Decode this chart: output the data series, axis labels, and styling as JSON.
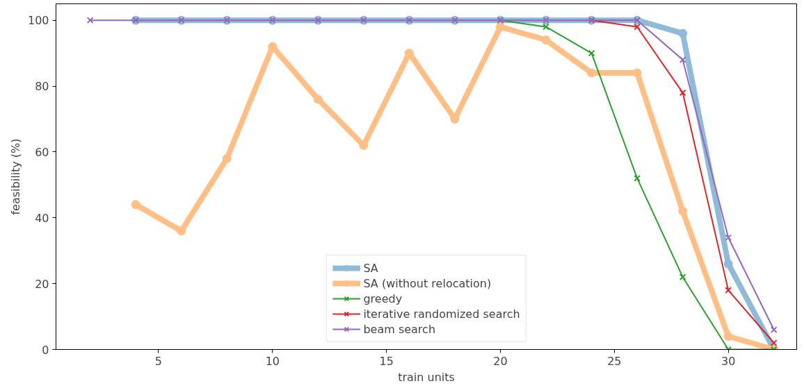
{
  "chart_data": {
    "type": "line",
    "xlabel": "train units",
    "ylabel": "feasibility (%)",
    "xlim": [
      0.5,
      33.0
    ],
    "xticks": [
      5,
      10,
      15,
      20,
      25,
      30
    ],
    "ylim": [
      0,
      105
    ],
    "yticks": [
      0,
      20,
      40,
      60,
      80,
      100
    ],
    "grid": false,
    "legend": "bottom",
    "series": [
      {
        "name": "SA",
        "color": "#8fbbd9",
        "marker": "circle",
        "x": [
          4,
          6,
          8,
          10,
          12,
          14,
          16,
          18,
          20,
          22,
          24,
          26,
          28,
          30,
          32
        ],
        "values": [
          100,
          100,
          100,
          100,
          100,
          100,
          100,
          100,
          100,
          100,
          100,
          100,
          96,
          26,
          0
        ]
      },
      {
        "name": "SA (without relocation)",
        "color": "#ffbf86",
        "marker": "circle",
        "x": [
          4,
          6,
          8,
          10,
          12,
          14,
          16,
          18,
          20,
          22,
          24,
          26,
          28,
          30,
          32
        ],
        "values": [
          44,
          36,
          58,
          92,
          76,
          62,
          90,
          70,
          98,
          94,
          84,
          84,
          42,
          4,
          0
        ]
      },
      {
        "name": "greedy",
        "color": "#2ca02c",
        "marker": "cross",
        "x": [
          20,
          22,
          24,
          26,
          28,
          30,
          32
        ],
        "values": [
          100,
          98,
          90,
          52,
          22,
          0,
          0
        ]
      },
      {
        "name": "iterative randomized search",
        "color": "#d62728",
        "marker": "cross",
        "x": [
          24,
          26,
          28,
          30,
          32
        ],
        "values": [
          100,
          98,
          78,
          18,
          2
        ]
      },
      {
        "name": "beam search",
        "color": "#9467bd",
        "marker": "cross",
        "x": [
          2,
          4,
          6,
          8,
          10,
          12,
          14,
          16,
          18,
          20,
          22,
          24,
          26,
          28,
          30,
          32
        ],
        "values": [
          100,
          100,
          100,
          100,
          100,
          100,
          100,
          100,
          100,
          100,
          100,
          100,
          100,
          88,
          34,
          6
        ]
      }
    ]
  }
}
